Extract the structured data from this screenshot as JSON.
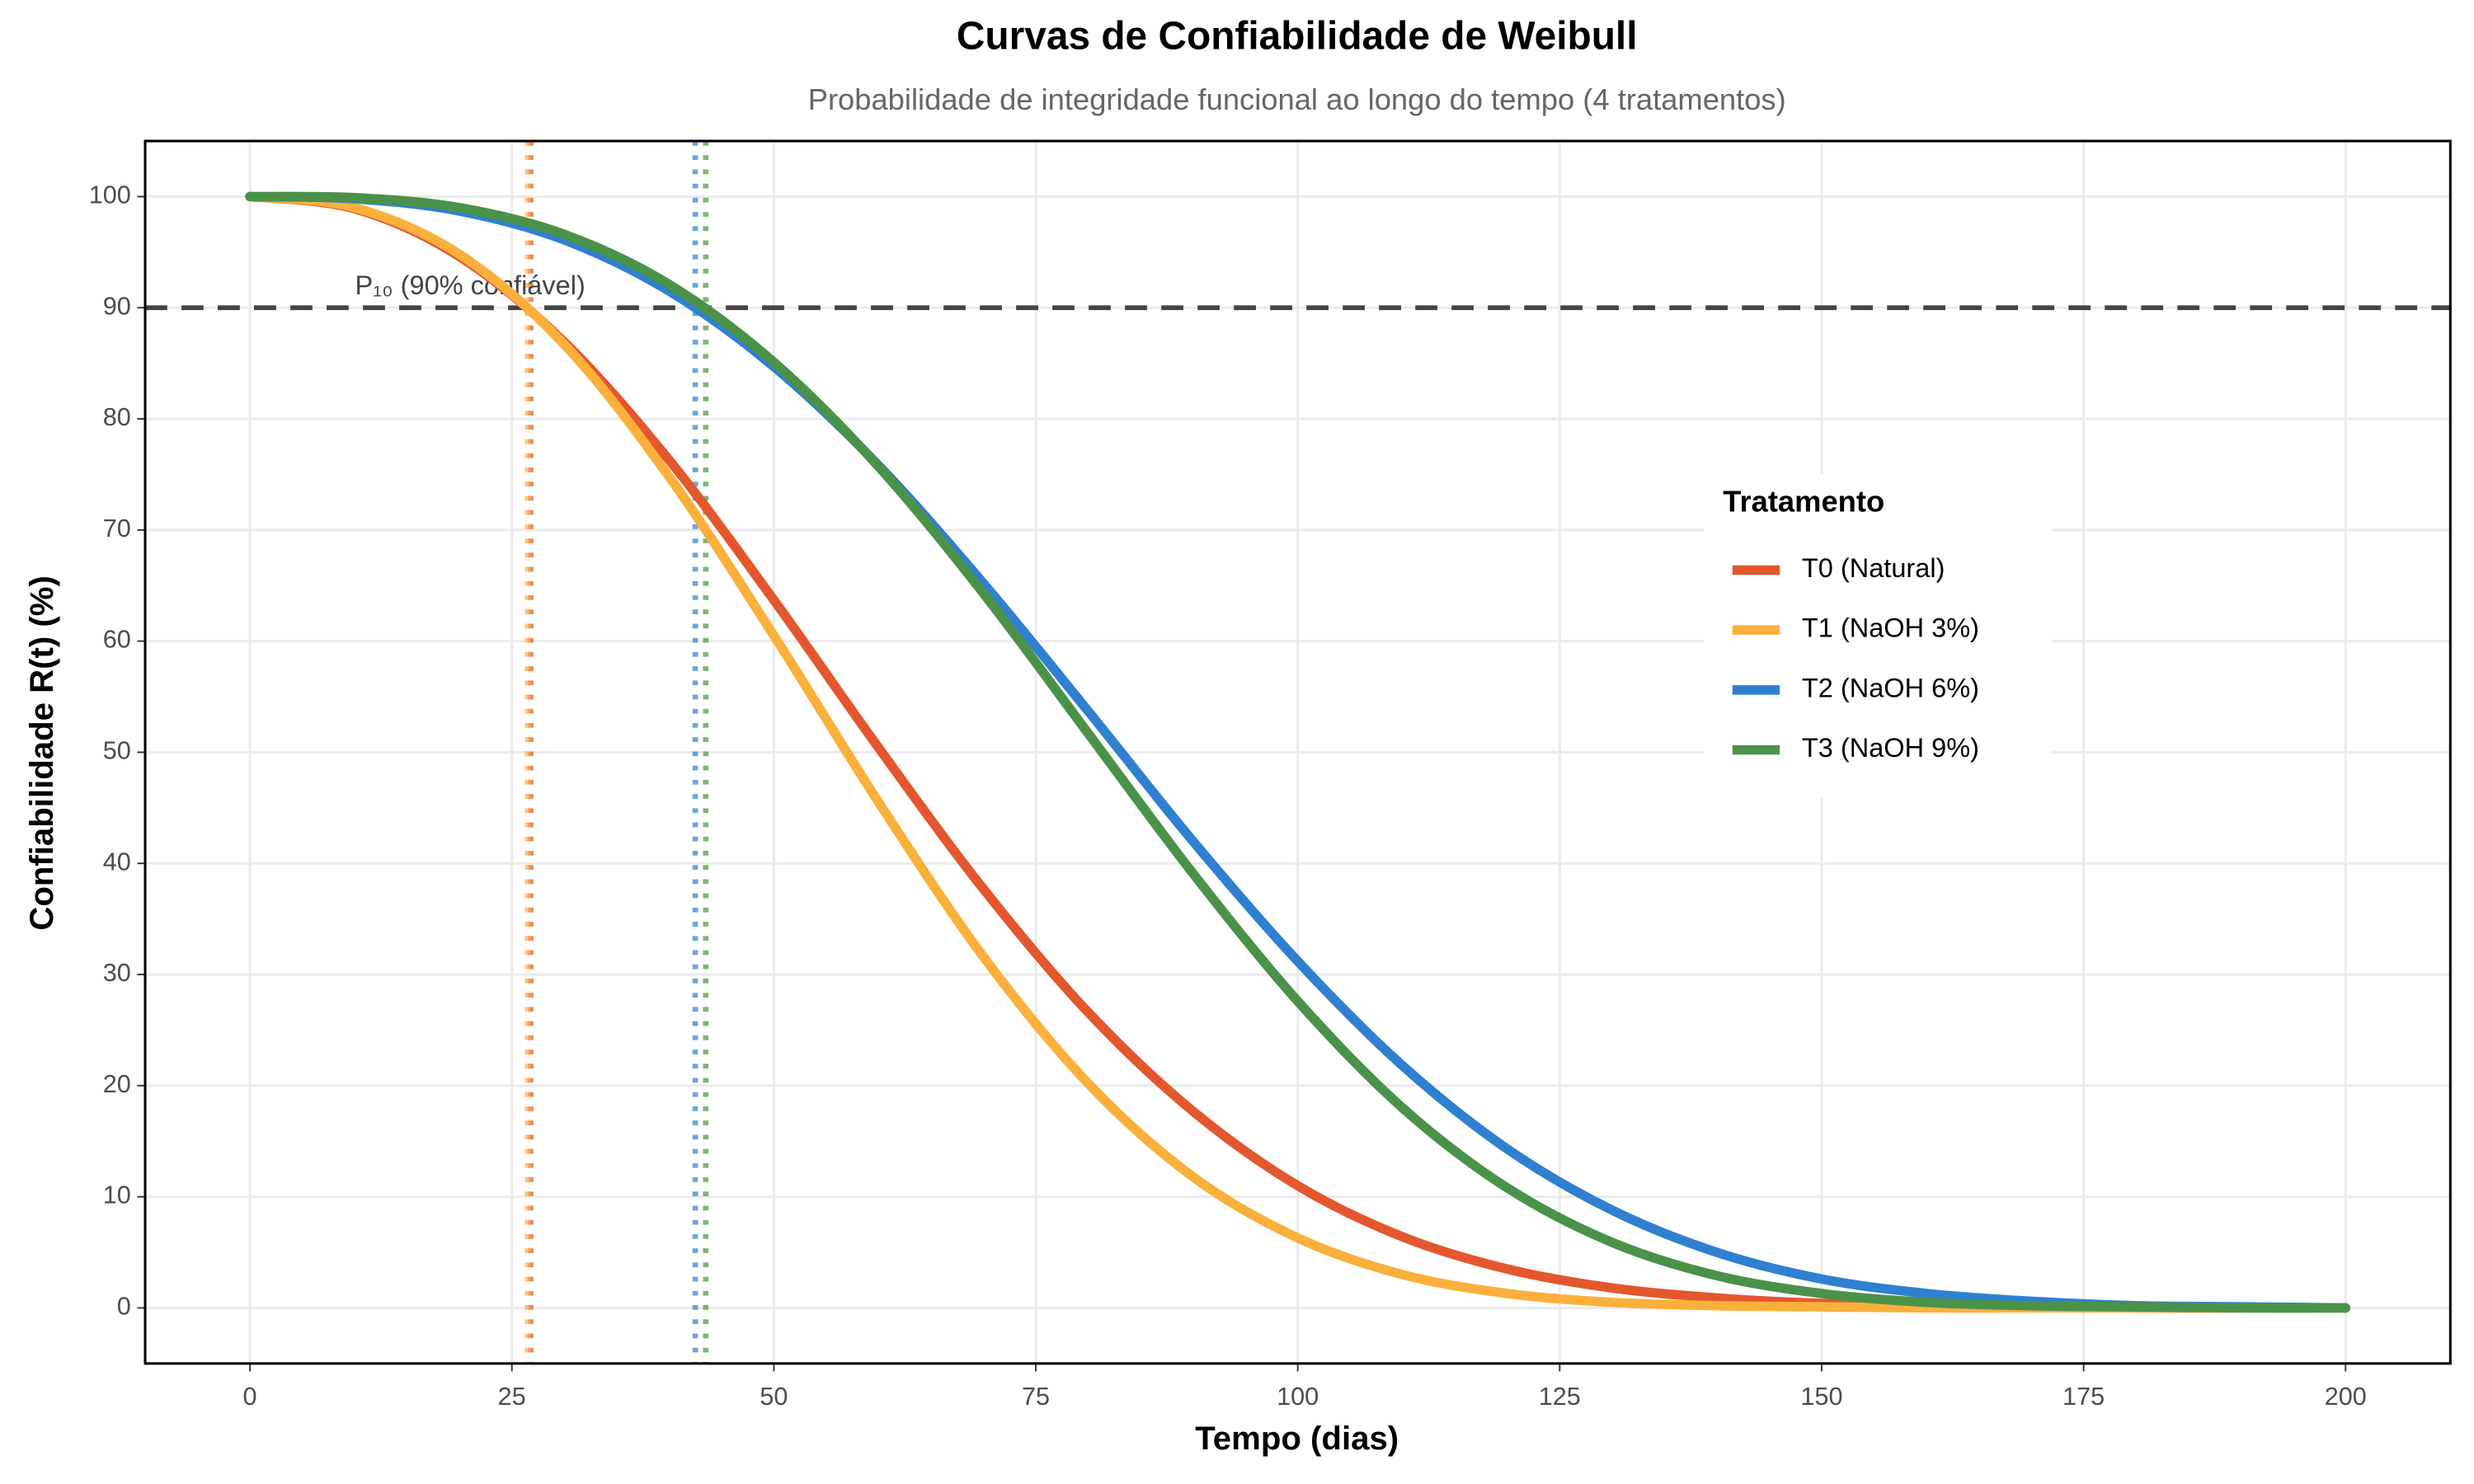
{
  "chart_data": {
    "type": "line",
    "title": "Curvas de Confiabilidade de Weibull",
    "subtitle": "Probabilidade de integridade funcional ao longo do tempo (4 tratamentos)",
    "x_label": "Tempo (dias)",
    "y_label": "Confiabilidade R(t) (%)",
    "x": [
      0,
      10,
      20,
      30,
      40,
      50,
      60,
      70,
      80,
      90,
      100,
      110,
      120,
      130,
      140,
      150,
      160,
      170,
      180,
      190,
      200
    ],
    "series": [
      {
        "name": "T0 (Natural)",
        "color": "#e4572e",
        "p10": 26.8,
        "values": [
          100,
          98.9,
          94.6,
          86.9,
          76.3,
          63.7,
          50.4,
          37.7,
          26.6,
          17.7,
          11.0,
          6.4,
          3.5,
          1.8,
          0.9,
          0.4,
          0.2,
          0.1,
          0,
          0,
          0
        ]
      },
      {
        "name": "T1 (NaOH 3%)",
        "color": "#fbb03b",
        "p10": 26.5,
        "values": [
          100,
          99.0,
          94.8,
          86.7,
          74.8,
          60.5,
          45.5,
          31.6,
          20.2,
          11.8,
          6.3,
          3.0,
          1.3,
          0.5,
          0.2,
          0.1,
          0,
          0,
          0,
          0,
          0
        ]
      },
      {
        "name": "T2 (NaOH 6%)",
        "color": "#2f80d1",
        "p10": 42.5,
        "values": [
          100,
          99.8,
          98.7,
          96.1,
          91.5,
          84.7,
          75.8,
          65.2,
          53.7,
          42.0,
          31.2,
          21.8,
          14.3,
          8.8,
          5.0,
          2.6,
          1.3,
          0.6,
          0.2,
          0.1,
          0
        ]
      },
      {
        "name": "T3 (NaOH 9%)",
        "color": "#4b9249",
        "p10": 43.5,
        "values": [
          100,
          99.9,
          99.0,
          96.6,
          92.1,
          85.1,
          75.7,
          64.3,
          51.7,
          39.1,
          27.6,
          18.0,
          10.8,
          5.9,
          2.9,
          1.3,
          0.5,
          0.2,
          0.1,
          0,
          0
        ]
      }
    ],
    "hline": 90,
    "annotation": "P₁₀ (90% confiável)",
    "legend_title": "Tratamento",
    "legend_position": "right",
    "xlim": [
      -10,
      210
    ],
    "ylim": [
      -5,
      105
    ],
    "xticks": [
      0,
      25,
      50,
      75,
      100,
      125,
      150,
      175,
      200
    ],
    "yticks": [
      0,
      10,
      20,
      30,
      40,
      50,
      60,
      70,
      80,
      90,
      100
    ],
    "grid": true
  }
}
